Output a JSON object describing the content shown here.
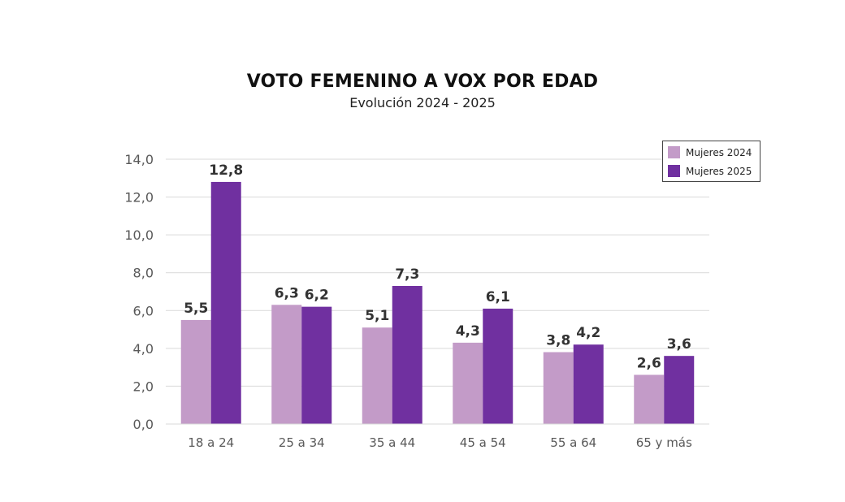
{
  "chart_data": {
    "type": "bar",
    "title": "VOTO FEMENINO A VOX POR EDAD",
    "subtitle": "Evolución 2024 - 2025",
    "xlabel": "",
    "ylabel": "",
    "categories": [
      "18 a 24",
      "25 a 34",
      "35 a 44",
      "45 a 54",
      "55 a 64",
      "65 y más"
    ],
    "series": [
      {
        "name": "Mujeres 2024",
        "color": "#c39bc8",
        "values": [
          5.5,
          6.3,
          5.1,
          4.3,
          3.8,
          2.6
        ],
        "labels": [
          "5,5",
          "6,3",
          "5,1",
          "4,3",
          "3,8",
          "2,6"
        ]
      },
      {
        "name": "Mujeres 2025",
        "color": "#7030a0",
        "values": [
          12.8,
          6.2,
          7.3,
          6.1,
          4.2,
          3.6
        ],
        "labels": [
          "12,8",
          "6,2",
          "7,3",
          "6,1",
          "4,2",
          "3,6"
        ]
      }
    ],
    "ylim": [
      0,
      14
    ],
    "yticks": [
      0,
      2,
      4,
      6,
      8,
      10,
      12,
      14
    ],
    "ytick_labels": [
      "0,0",
      "2,0",
      "4,0",
      "6,0",
      "8,0",
      "10,0",
      "12,0",
      "14,0"
    ],
    "grid": true,
    "legend_position": "top-right"
  }
}
